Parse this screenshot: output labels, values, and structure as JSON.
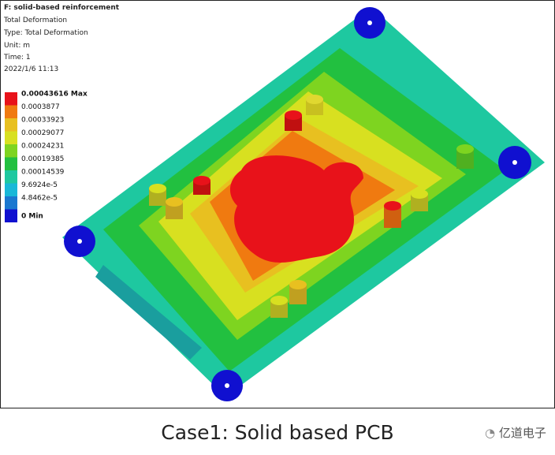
{
  "header": {
    "title": "F: solid-based reinforcement",
    "lines": [
      "Total Deformation",
      "Type: Total Deformation",
      "Unit: m",
      "Time: 1",
      "2022/1/6 11:13"
    ]
  },
  "legend": {
    "labels": [
      "0.00043616 Max",
      "0.0003877",
      "0.00033923",
      "0.00029077",
      "0.00024231",
      "0.00019385",
      "0.00014539",
      "9.6924e-5",
      "4.8462e-5",
      "0 Min"
    ],
    "colors": [
      "#e8121a",
      "#f07a10",
      "#e8c020",
      "#d8e020",
      "#7ed420",
      "#22c040",
      "#1ec8a0",
      "#18b8d8",
      "#1a78d0",
      "#1010d0"
    ]
  },
  "caption": "Case1: Solid  based  PCB",
  "watermark": "亿道电子"
}
